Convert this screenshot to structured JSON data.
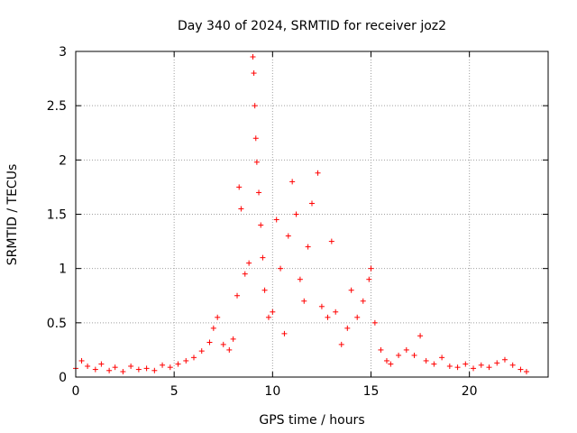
{
  "chart_data": {
    "type": "scatter",
    "title": "Day 340 of 2024, SRMTID for receiver joz2",
    "xlabel": "GPS time / hours",
    "ylabel": "SRMTID / TECUs",
    "xlim": [
      0,
      24
    ],
    "ylim": [
      0,
      3
    ],
    "xticks": [
      0,
      5,
      10,
      15,
      20
    ],
    "xtick_labels": [
      "0",
      "5",
      "10",
      "15",
      "20"
    ],
    "yticks": [
      0,
      0.5,
      1,
      1.5,
      2,
      2.5,
      3
    ],
    "ytick_labels": [
      "0",
      "0.5",
      "1",
      "1.5",
      "2",
      "2.5",
      "3"
    ],
    "grid": true,
    "marker": "+",
    "series": [
      {
        "name": "SRMTID",
        "color": "#ff0000",
        "points": [
          [
            0.0,
            0.08
          ],
          [
            0.3,
            0.15
          ],
          [
            0.6,
            0.1
          ],
          [
            1.0,
            0.07
          ],
          [
            1.3,
            0.12
          ],
          [
            1.7,
            0.06
          ],
          [
            2.0,
            0.09
          ],
          [
            2.4,
            0.05
          ],
          [
            2.8,
            0.1
          ],
          [
            3.2,
            0.07
          ],
          [
            3.6,
            0.08
          ],
          [
            4.0,
            0.06
          ],
          [
            4.4,
            0.11
          ],
          [
            4.8,
            0.09
          ],
          [
            5.2,
            0.12
          ],
          [
            5.6,
            0.15
          ],
          [
            6.0,
            0.18
          ],
          [
            6.4,
            0.24
          ],
          [
            6.8,
            0.32
          ],
          [
            7.0,
            0.45
          ],
          [
            7.2,
            0.55
          ],
          [
            7.5,
            0.3
          ],
          [
            7.8,
            0.25
          ],
          [
            8.0,
            0.35
          ],
          [
            8.2,
            0.75
          ],
          [
            8.3,
            1.75
          ],
          [
            8.4,
            1.55
          ],
          [
            8.6,
            0.95
          ],
          [
            8.8,
            1.05
          ],
          [
            9.0,
            2.95
          ],
          [
            9.05,
            2.8
          ],
          [
            9.1,
            2.5
          ],
          [
            9.15,
            2.2
          ],
          [
            9.2,
            1.98
          ],
          [
            9.3,
            1.7
          ],
          [
            9.4,
            1.4
          ],
          [
            9.5,
            1.1
          ],
          [
            9.6,
            0.8
          ],
          [
            9.8,
            0.55
          ],
          [
            10.0,
            0.6
          ],
          [
            10.2,
            1.45
          ],
          [
            10.4,
            1.0
          ],
          [
            10.6,
            0.4
          ],
          [
            10.8,
            1.3
          ],
          [
            11.0,
            1.8
          ],
          [
            11.2,
            1.5
          ],
          [
            11.4,
            0.9
          ],
          [
            11.6,
            0.7
          ],
          [
            11.8,
            1.2
          ],
          [
            12.0,
            1.6
          ],
          [
            12.3,
            1.88
          ],
          [
            12.5,
            0.65
          ],
          [
            12.8,
            0.55
          ],
          [
            13.0,
            1.25
          ],
          [
            13.2,
            0.6
          ],
          [
            13.5,
            0.3
          ],
          [
            13.8,
            0.45
          ],
          [
            14.0,
            0.8
          ],
          [
            14.3,
            0.55
          ],
          [
            14.6,
            0.7
          ],
          [
            14.9,
            0.9
          ],
          [
            15.0,
            1.0
          ],
          [
            15.2,
            0.5
          ],
          [
            15.5,
            0.25
          ],
          [
            15.8,
            0.15
          ],
          [
            16.0,
            0.12
          ],
          [
            16.4,
            0.2
          ],
          [
            16.8,
            0.25
          ],
          [
            17.2,
            0.2
          ],
          [
            17.5,
            0.38
          ],
          [
            17.8,
            0.15
          ],
          [
            18.2,
            0.12
          ],
          [
            18.6,
            0.18
          ],
          [
            19.0,
            0.1
          ],
          [
            19.4,
            0.09
          ],
          [
            19.8,
            0.12
          ],
          [
            20.2,
            0.08
          ],
          [
            20.6,
            0.11
          ],
          [
            21.0,
            0.09
          ],
          [
            21.4,
            0.13
          ],
          [
            21.8,
            0.16
          ],
          [
            22.2,
            0.11
          ],
          [
            22.6,
            0.07
          ],
          [
            22.9,
            0.05
          ]
        ]
      }
    ]
  }
}
